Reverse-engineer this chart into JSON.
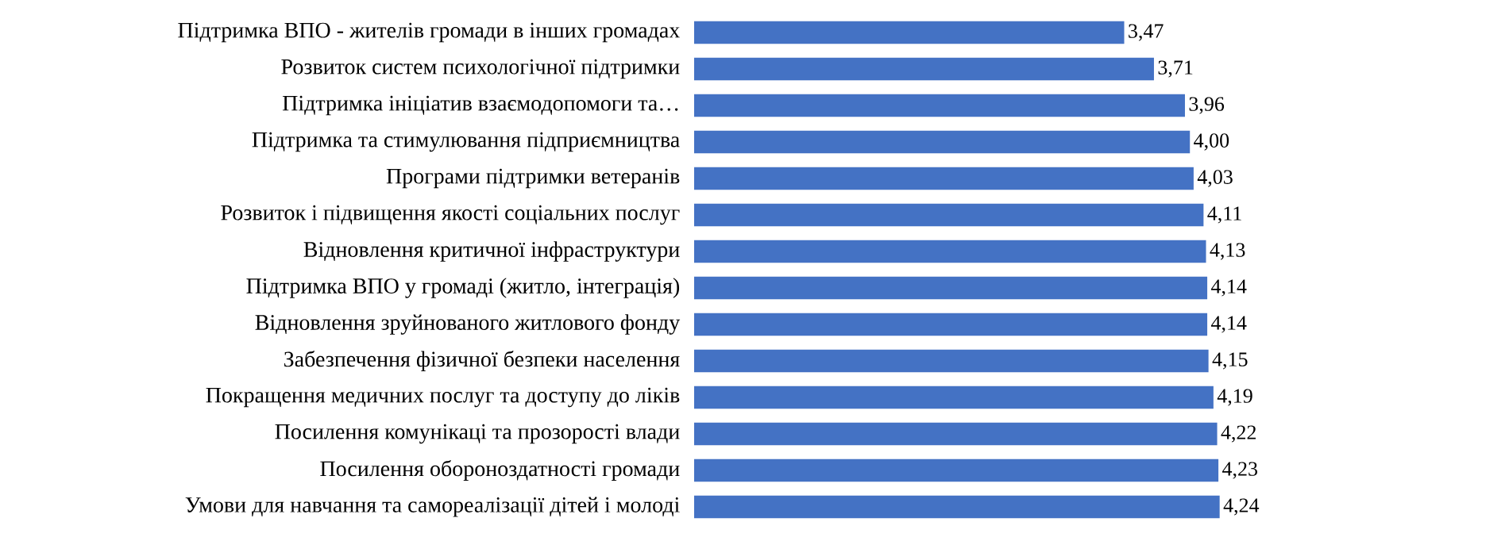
{
  "chart_data": {
    "type": "bar",
    "orientation": "horizontal",
    "color": "#4472c4",
    "categories": [
      "Підтримка ВПО  - жителів громади в інших громадах",
      "Розвиток систем психологічної підтримки",
      "Підтримка ініціатив взаємодопомоги та…",
      "Підтримка та стимулювання підприємництва",
      "Програми підтримки ветеранів",
      "Розвиток і підвищення якості соціальних послуг",
      "Відновлення критичної інфраструктури",
      "Підтримка ВПО у громаді (житло, інтеграція)",
      "Відновлення зруйнованого житлового фонду",
      "Забезпечення фізичної безпеки населення",
      "Покращення медичних послуг та доступу до ліків",
      "Посилення комунікаці та прозорості влади",
      "Посилення обороноздатності громади",
      "Умови для навчання та самореалізації дітей і молоді"
    ],
    "values": [
      3.47,
      3.71,
      3.96,
      4.0,
      4.03,
      4.11,
      4.13,
      4.14,
      4.14,
      4.15,
      4.19,
      4.22,
      4.23,
      4.24
    ],
    "value_labels": [
      "3,47",
      "3,71",
      "3,96",
      "4,00",
      "4,03",
      "4,11",
      "4,13",
      "4,14",
      "4,14",
      "4,15",
      "4,19",
      "4,22",
      "4,23",
      "4,24"
    ]
  }
}
